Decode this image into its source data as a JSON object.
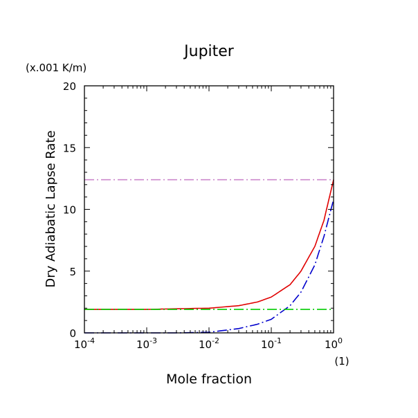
{
  "chart_data": {
    "type": "line",
    "title": "Jupiter",
    "unit_label": "(x.001 K/m)",
    "ylabel": "Dry Adiabatic Lapse Rate",
    "xlabel": "Mole fraction",
    "x_unit_label": "(1)",
    "x_scale": "log",
    "xlim": [
      0.0001,
      1
    ],
    "ylim": [
      0,
      20
    ],
    "x_ticks": [
      0.0001,
      0.001,
      0.01,
      0.1,
      1
    ],
    "x_tick_labels": [
      {
        "base": "10",
        "exp": "-4"
      },
      {
        "base": "10",
        "exp": "-3"
      },
      {
        "base": "10",
        "exp": "-2"
      },
      {
        "base": "10",
        "exp": "-1"
      },
      {
        "base": "10",
        "exp": "0"
      }
    ],
    "y_ticks": [
      0,
      5,
      10,
      15,
      20
    ],
    "y_tick_labels": [
      "0",
      "5",
      "10",
      "15",
      "20"
    ],
    "grid": false,
    "series": [
      {
        "style": "solid",
        "color": "#e00000",
        "x": [
          0.0001,
          0.001,
          0.003,
          0.01,
          0.03,
          0.06,
          0.1,
          0.2,
          0.3,
          0.5,
          0.7,
          1
        ],
        "y": [
          1.9,
          1.9,
          1.95,
          2.0,
          2.2,
          2.5,
          2.9,
          3.9,
          5.0,
          7.0,
          9.1,
          12.4
        ]
      },
      {
        "style": "dashdot",
        "color": "#0000cc",
        "x": [
          0.0001,
          0.003,
          0.01,
          0.03,
          0.06,
          0.1,
          0.2,
          0.3,
          0.5,
          0.7,
          1
        ],
        "y": [
          0.0,
          0.0,
          0.05,
          0.35,
          0.7,
          1.1,
          2.2,
          3.3,
          5.5,
          7.8,
          10.8
        ]
      },
      {
        "style": "dashdot",
        "color": "#00cc00",
        "x": [
          0.0001,
          1
        ],
        "y": [
          1.9,
          1.9
        ]
      },
      {
        "style": "dashdot",
        "color": "#cc88cc",
        "x": [
          0.0001,
          1
        ],
        "y": [
          12.4,
          12.4
        ]
      }
    ]
  }
}
